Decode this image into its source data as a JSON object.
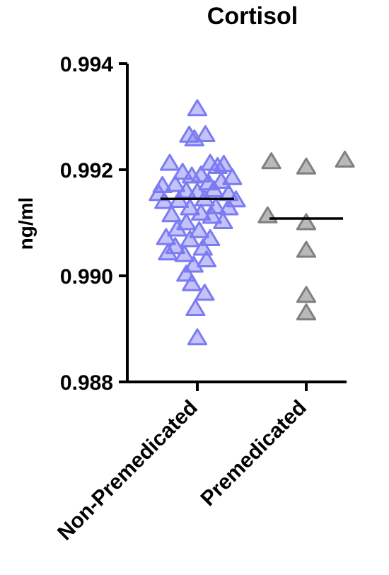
{
  "chart_data": {
    "type": "scatter",
    "title": "Cortisol",
    "ylabel": "ng/ml",
    "xlabel": "",
    "ylim": [
      0.988,
      0.994
    ],
    "yticks": [
      "0.988",
      "0.990",
      "0.992",
      "0.994"
    ],
    "marker": "triangle",
    "categories": [
      "Non-Premedicated",
      "Premedicated"
    ],
    "series": [
      {
        "category": "Non-Premedicated",
        "color": "#7b7bf2",
        "median": 0.99145,
        "points": [
          {
            "x": 0.0,
            "y": 0.99315
          },
          {
            "x": -0.22,
            "y": 0.99265
          },
          {
            "x": -0.08,
            "y": 0.99258
          },
          {
            "x": 0.22,
            "y": 0.99266
          },
          {
            "x": -0.75,
            "y": 0.99212
          },
          {
            "x": 0.35,
            "y": 0.99212
          },
          {
            "x": 0.72,
            "y": 0.9921
          },
          {
            "x": 0.55,
            "y": 0.99206
          },
          {
            "x": -0.4,
            "y": 0.99195
          },
          {
            "x": -0.15,
            "y": 0.99188
          },
          {
            "x": 0.1,
            "y": 0.9919
          },
          {
            "x": 0.95,
            "y": 0.99185
          },
          {
            "x": -0.95,
            "y": 0.9917
          },
          {
            "x": -0.6,
            "y": 0.99172
          },
          {
            "x": 0.3,
            "y": 0.99175
          },
          {
            "x": 0.65,
            "y": 0.99178
          },
          {
            "x": -1.05,
            "y": 0.99155
          },
          {
            "x": -0.3,
            "y": 0.9916
          },
          {
            "x": 0.0,
            "y": 0.99158
          },
          {
            "x": 0.45,
            "y": 0.99162
          },
          {
            "x": 0.85,
            "y": 0.99155
          },
          {
            "x": -0.9,
            "y": 0.9914
          },
          {
            "x": -0.5,
            "y": 0.99142
          },
          {
            "x": 0.2,
            "y": 0.99145
          },
          {
            "x": 1.05,
            "y": 0.99143
          },
          {
            "x": -0.2,
            "y": 0.99128
          },
          {
            "x": 0.5,
            "y": 0.9913
          },
          {
            "x": 0.85,
            "y": 0.99128
          },
          {
            "x": -0.7,
            "y": 0.99115
          },
          {
            "x": 0.1,
            "y": 0.99118
          },
          {
            "x": 0.4,
            "y": 0.99112
          },
          {
            "x": -0.3,
            "y": 0.991
          },
          {
            "x": 0.7,
            "y": 0.99102
          },
          {
            "x": -0.55,
            "y": 0.99088
          },
          {
            "x": 0.05,
            "y": 0.99085
          },
          {
            "x": -0.85,
            "y": 0.99072
          },
          {
            "x": -0.2,
            "y": 0.99068
          },
          {
            "x": 0.35,
            "y": 0.9907
          },
          {
            "x": -0.6,
            "y": 0.99055
          },
          {
            "x": 0.15,
            "y": 0.99052
          },
          {
            "x": -0.8,
            "y": 0.99043
          },
          {
            "x": -0.35,
            "y": 0.9904
          },
          {
            "x": 0.25,
            "y": 0.9903
          },
          {
            "x": -0.1,
            "y": 0.9902
          },
          {
            "x": -0.3,
            "y": 0.99003
          },
          {
            "x": -0.15,
            "y": 0.98985
          },
          {
            "x": 0.2,
            "y": 0.98967
          },
          {
            "x": -0.05,
            "y": 0.98938
          },
          {
            "x": 0.0,
            "y": 0.98883
          }
        ]
      },
      {
        "category": "Premedicated",
        "color": "#808080",
        "median": 0.99108,
        "points": [
          {
            "x": -0.95,
            "y": 0.99215
          },
          {
            "x": 1.05,
            "y": 0.99218
          },
          {
            "x": 0.0,
            "y": 0.99205
          },
          {
            "x": -1.05,
            "y": 0.99113
          },
          {
            "x": 0.0,
            "y": 0.991
          },
          {
            "x": 0.0,
            "y": 0.99048
          },
          {
            "x": 0.0,
            "y": 0.98963
          },
          {
            "x": 0.0,
            "y": 0.9893
          }
        ]
      }
    ]
  }
}
